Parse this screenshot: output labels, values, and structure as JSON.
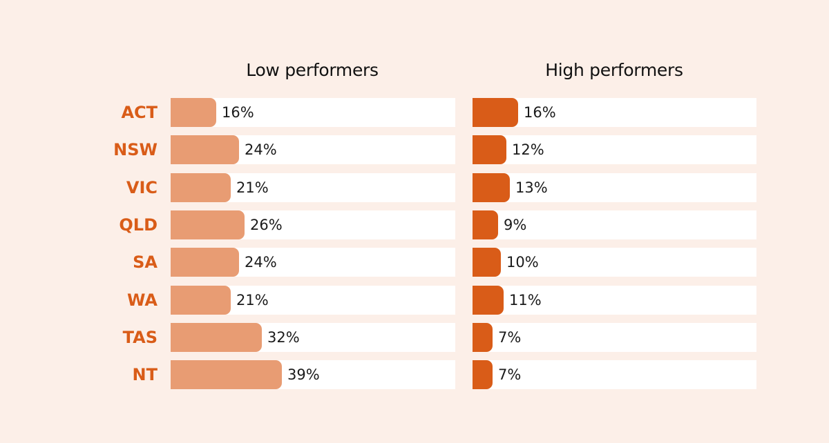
{
  "chart_data": {
    "type": "bar",
    "orientation": "horizontal",
    "categories": [
      "ACT",
      "NSW",
      "VIC",
      "QLD",
      "SA",
      "WA",
      "TAS",
      "NT"
    ],
    "series": [
      {
        "name": "Low performers",
        "values": [
          16,
          24,
          21,
          26,
          24,
          21,
          32,
          39
        ]
      },
      {
        "name": "High performers",
        "values": [
          16,
          12,
          13,
          9,
          10,
          11,
          7,
          7
        ]
      }
    ],
    "value_suffix": "%",
    "xlim": [
      0,
      100
    ],
    "grid": false,
    "legend": "none"
  },
  "colors": {
    "background": "#fcefe8",
    "track": "#ffffff",
    "low_bar": "#e89c73",
    "high_bar": "#d95c18",
    "category_label": "#d95c18"
  }
}
